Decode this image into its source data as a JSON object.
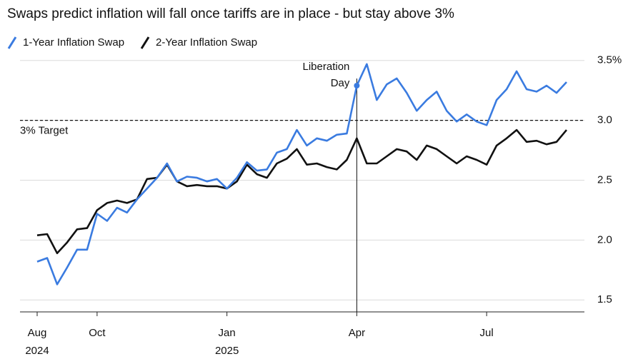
{
  "chart_data": {
    "type": "line",
    "title": "Swaps predict inflation will fall once tariffs are in place - but stay above 3%",
    "categories": [
      "Aug 2024",
      null,
      null,
      null,
      null,
      null,
      "Oct",
      null,
      null,
      null,
      null,
      null,
      null,
      null,
      null,
      null,
      null,
      null,
      null,
      "Jan 2025",
      null,
      null,
      null,
      null,
      null,
      null,
      null,
      null,
      null,
      null,
      null,
      null,
      "Apr",
      null,
      null,
      null,
      null,
      null,
      null,
      null,
      null,
      null,
      null,
      null,
      null,
      "Jul",
      null,
      null,
      null,
      null,
      null,
      null,
      null,
      null
    ],
    "series": [
      {
        "name": "1-Year Inflation Swap",
        "color": "#3a7be0",
        "values": [
          1.82,
          1.85,
          1.63,
          1.77,
          1.92,
          1.92,
          2.22,
          2.16,
          2.27,
          2.23,
          2.34,
          2.43,
          2.52,
          2.64,
          2.49,
          2.53,
          2.52,
          2.49,
          2.51,
          2.43,
          2.52,
          2.65,
          2.58,
          2.59,
          2.73,
          2.76,
          2.92,
          2.79,
          2.85,
          2.83,
          2.88,
          2.89,
          3.29,
          3.47,
          3.17,
          3.3,
          3.35,
          3.23,
          3.08,
          3.17,
          3.24,
          3.08,
          2.99,
          3.05,
          2.99,
          2.96,
          3.17,
          3.26,
          3.41,
          3.26,
          3.24,
          3.29,
          3.23,
          3.32
        ]
      },
      {
        "name": "2-Year Inflation Swap",
        "color": "#111111",
        "values": [
          2.04,
          2.05,
          1.89,
          1.98,
          2.09,
          2.1,
          2.25,
          2.31,
          2.33,
          2.31,
          2.34,
          2.51,
          2.52,
          2.63,
          2.49,
          2.45,
          2.46,
          2.45,
          2.45,
          2.43,
          2.49,
          2.63,
          2.55,
          2.52,
          2.64,
          2.68,
          2.76,
          2.63,
          2.64,
          2.61,
          2.59,
          2.67,
          2.85,
          2.64,
          2.64,
          2.7,
          2.76,
          2.74,
          2.67,
          2.79,
          2.76,
          2.7,
          2.64,
          2.7,
          2.67,
          2.63,
          2.79,
          2.85,
          2.92,
          2.82,
          2.83,
          2.8,
          2.82,
          2.92
        ]
      }
    ],
    "ylim": [
      1.4,
      3.6
    ],
    "yticks": [
      {
        "value": 3.5,
        "label": "3.5%"
      },
      {
        "value": 3,
        "label": "3.0"
      },
      2.5,
      {
        "value": 2,
        "label": "2.0"
      },
      1.5
    ],
    "grid": true,
    "target": {
      "value": 3,
      "label": "3% Target"
    },
    "annotation": "Liberation Day"
  }
}
